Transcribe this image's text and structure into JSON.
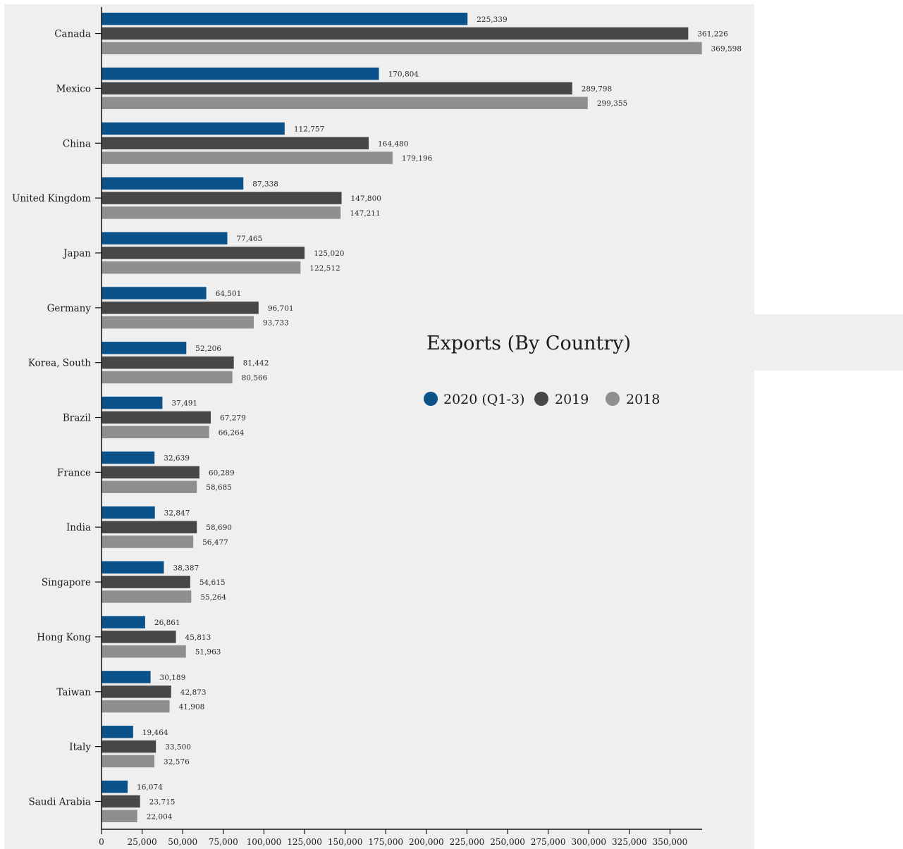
{
  "colors": {
    "background": "#ffffff",
    "panel": "#efefef",
    "axis": "#111111"
  },
  "chart_data": {
    "type": "bar",
    "orientation": "horizontal",
    "title": "Exports (By Country)",
    "categories": [
      "Canada",
      "Mexico",
      "China",
      "United Kingdom",
      "Japan",
      "Germany",
      "Korea, South",
      "Brazil",
      "France",
      "India",
      "Singapore",
      "Hong Kong",
      "Taiwan",
      "Italy",
      "Saudi Arabia"
    ],
    "series": [
      {
        "name": "2020 (Q1-3)",
        "color": "#0a5289",
        "values": [
          225339,
          170804,
          112757,
          87338,
          77465,
          64501,
          52206,
          37491,
          32639,
          32847,
          38387,
          26861,
          30189,
          19464,
          16074
        ]
      },
      {
        "name": "2019",
        "color": "#474747",
        "values": [
          361226,
          289798,
          164480,
          147800,
          125020,
          96701,
          81442,
          67279,
          60289,
          58690,
          54615,
          45813,
          42873,
          33500,
          23715
        ]
      },
      {
        "name": "2018",
        "color": "#8f8f8f",
        "values": [
          369598,
          299355,
          179196,
          147211,
          122512,
          93733,
          80566,
          66264,
          58685,
          56477,
          55264,
          51963,
          41908,
          32576,
          22004
        ]
      }
    ],
    "x_ticks": [
      0,
      25000,
      50000,
      75000,
      100000,
      125000,
      150000,
      175000,
      200000,
      225000,
      250000,
      275000,
      300000,
      325000,
      350000
    ],
    "x_tick_labels": [
      "0",
      "25,000",
      "50,000",
      "75,000",
      "100,000",
      "125,000",
      "150,000",
      "175,000",
      "200,000",
      "225,000",
      "250,000",
      "275,000",
      "300,000",
      "325,000",
      "350,000"
    ],
    "xlim": [
      0,
      370000
    ],
    "legend_position": "right",
    "grid": false
  }
}
